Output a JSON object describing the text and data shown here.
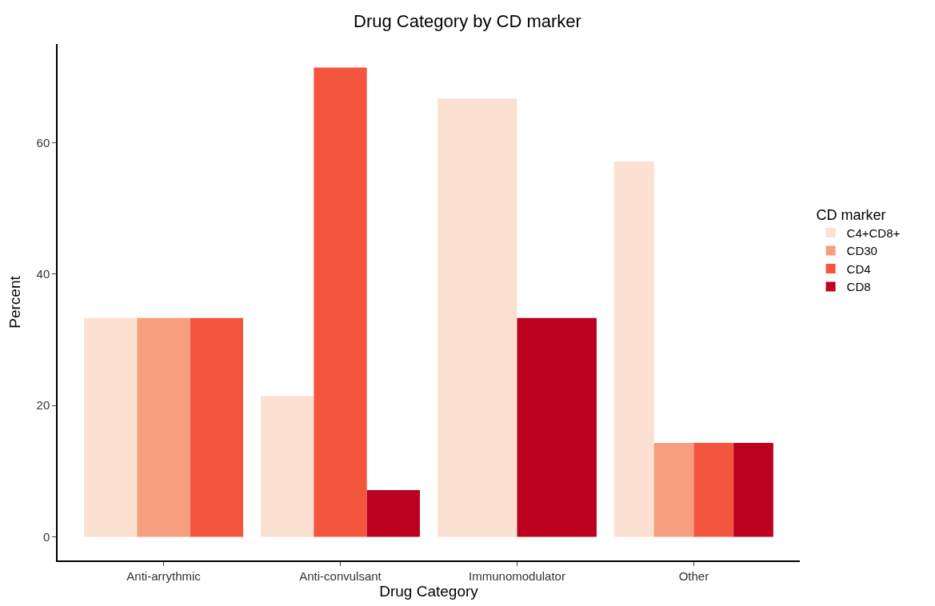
{
  "chart_data": {
    "type": "bar",
    "title": "Drug Category by CD marker",
    "xlabel": "Drug Category",
    "ylabel": "Percent",
    "legend_title": "CD marker",
    "categories": [
      "Anti-arrythmic",
      "Anti-convulsant",
      "Immunomodulator",
      "Other"
    ],
    "series": [
      {
        "name": "C4+CD8+",
        "color": "#fce0d2",
        "values": [
          33.3,
          21.4,
          66.7,
          57.1
        ]
      },
      {
        "name": "CD30",
        "color": "#f79e7e",
        "values": [
          33.3,
          null,
          null,
          14.3
        ]
      },
      {
        "name": "CD4",
        "color": "#f4553d",
        "values": [
          33.3,
          71.4,
          null,
          14.3
        ]
      },
      {
        "name": "CD8",
        "color": "#bb0020",
        "values": [
          null,
          7.1,
          33.3,
          14.3
        ]
      }
    ],
    "ylim": [
      -3.6,
      75
    ],
    "yticks": [
      0,
      20,
      40,
      60
    ],
    "legend": "right"
  }
}
